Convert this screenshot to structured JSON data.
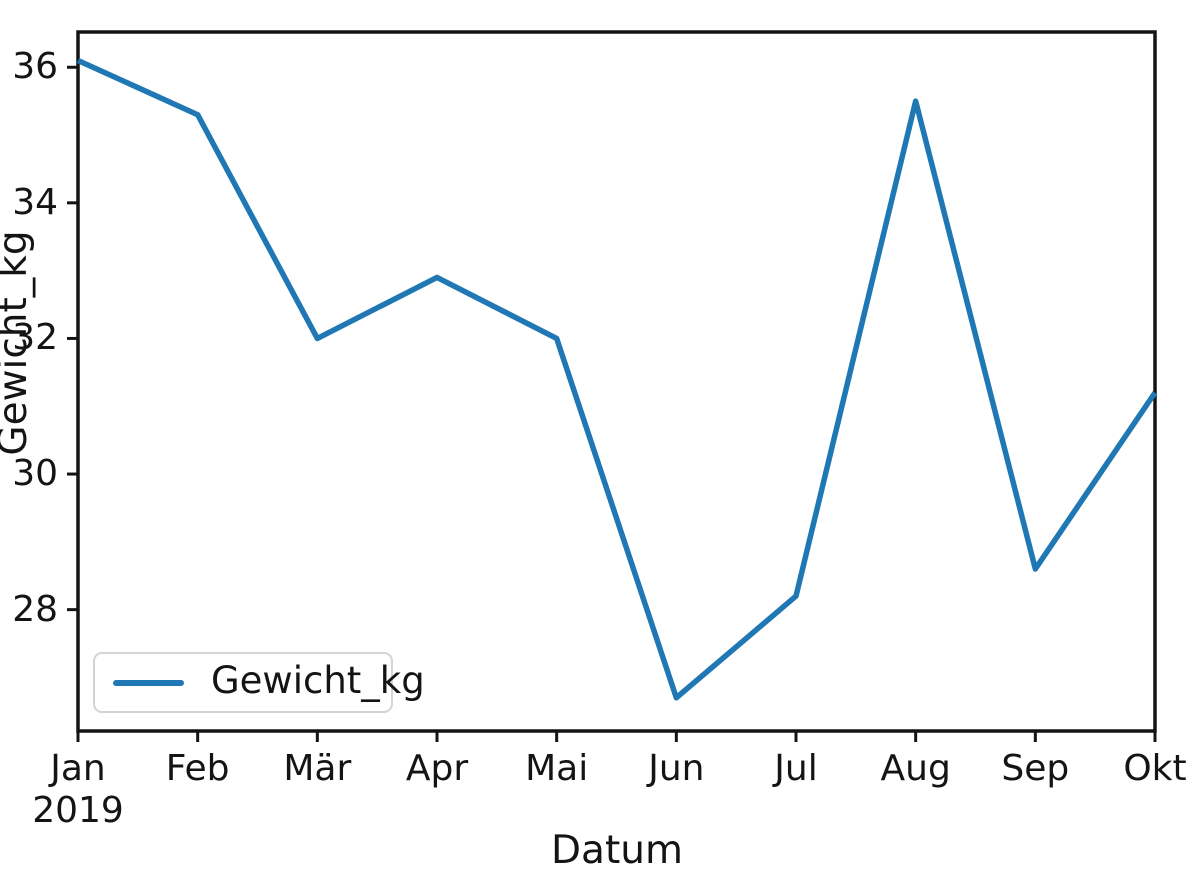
{
  "chart_data": {
    "type": "line",
    "xlabel": "Datum",
    "ylabel": "Gewicht_kg",
    "x_tick_labels": [
      "Jan",
      "Feb",
      "Mär",
      "Apr",
      "Mai",
      "Jun",
      "Jul",
      "Aug",
      "Sep",
      "Okt"
    ],
    "x_first_tick_sublabel": "2019",
    "y_ticks": [
      36,
      34,
      32,
      30,
      28
    ],
    "ylim": [
      26.21,
      36.52
    ],
    "grid": false,
    "series": [
      {
        "name": "Gewicht_kg",
        "color": "#1f77b4",
        "values": [
          36.1,
          35.3,
          32.0,
          32.9,
          32.0,
          26.7,
          28.2,
          35.5,
          28.6,
          31.2
        ]
      }
    ],
    "legend": {
      "position": "lower left",
      "entries": [
        {
          "label": "Gewicht_kg",
          "color": "#1f77b4"
        }
      ]
    },
    "colors": {
      "line": "#1f77b4",
      "axis": "#141414",
      "text": "#141414",
      "legend_border": "#d4d4d4",
      "background": "#ffffff"
    }
  }
}
